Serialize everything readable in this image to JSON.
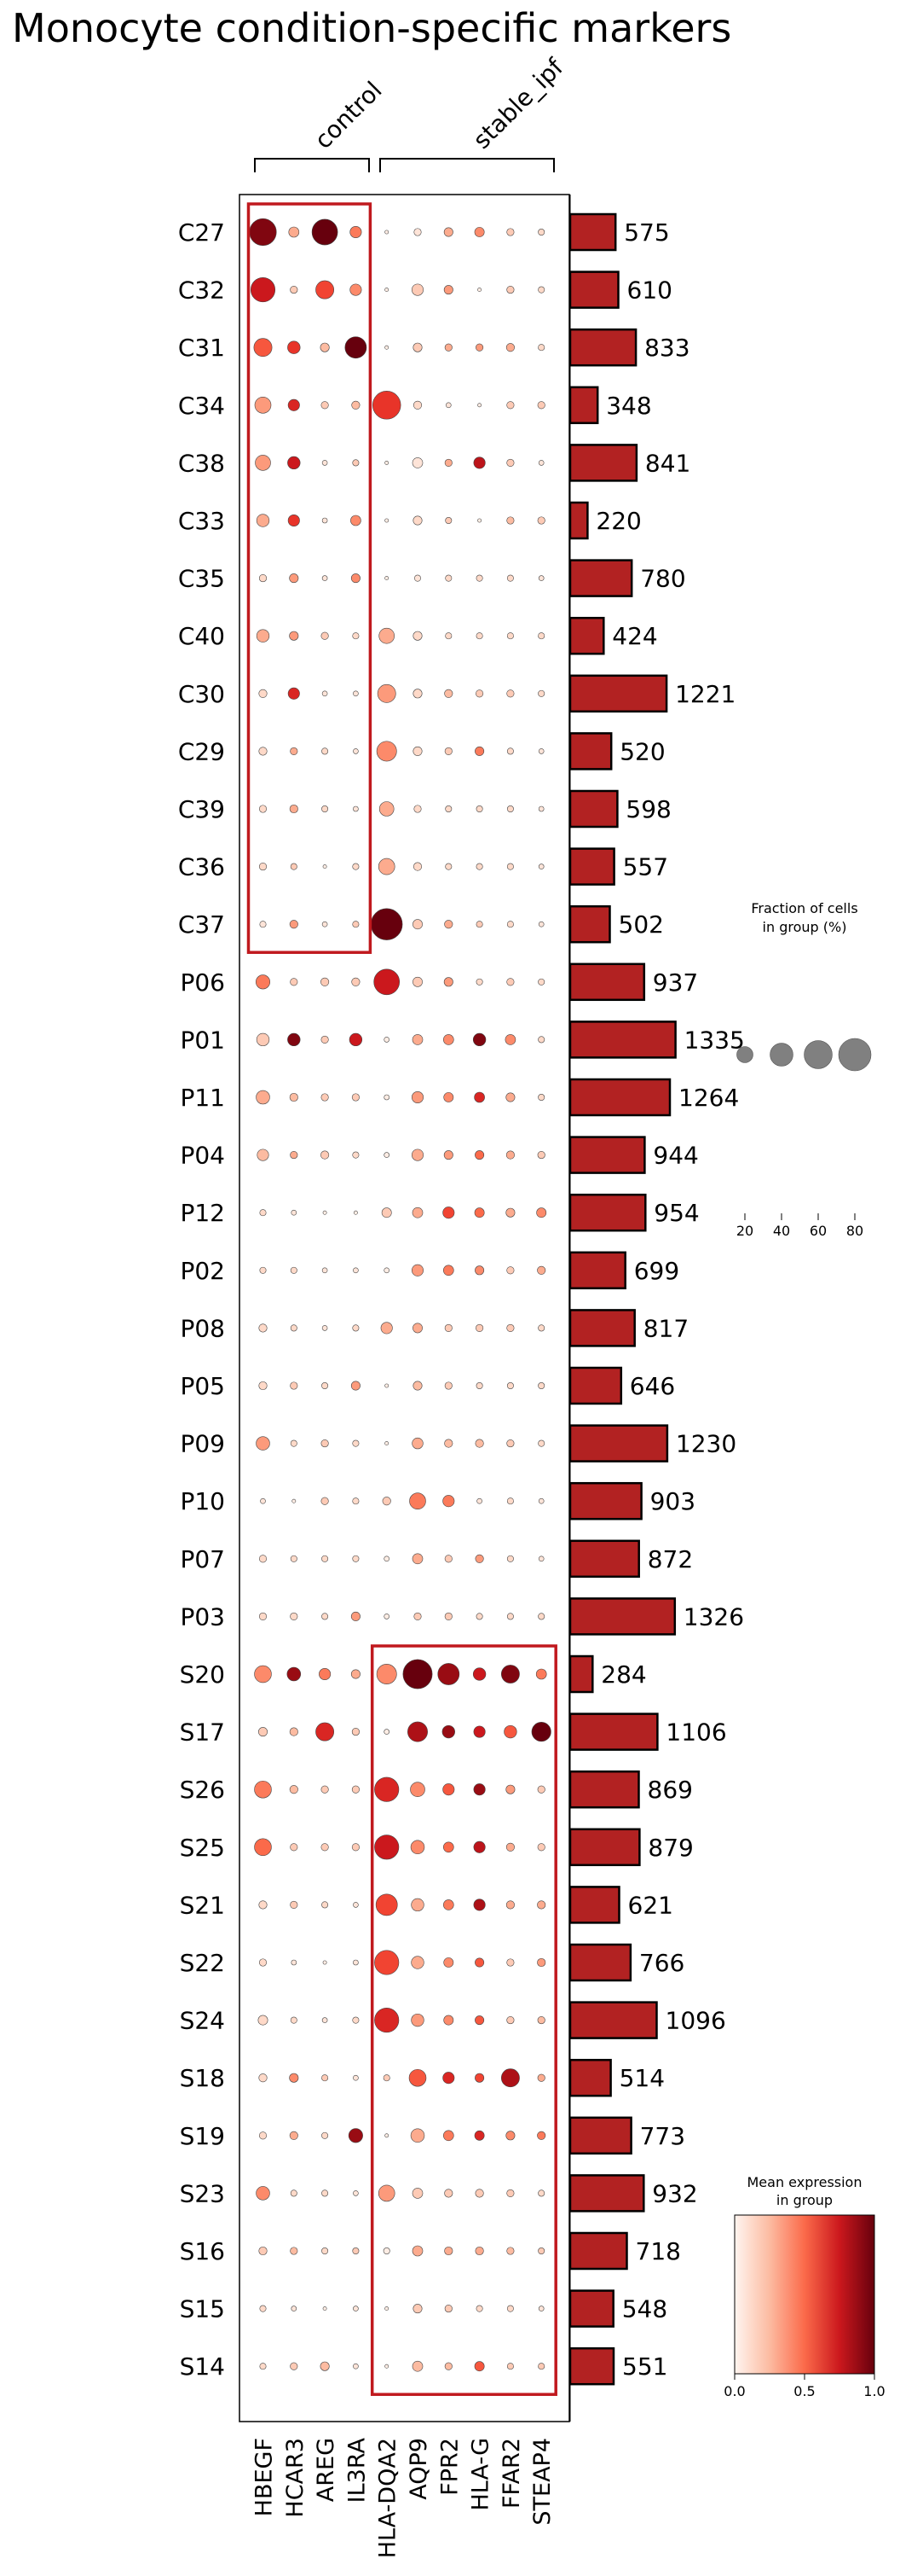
{
  "chart_data": {
    "type": "dotplot",
    "title": "Monocyte condition-specific markers",
    "groups": [
      {
        "label": "control",
        "genes": [
          "HBEGF",
          "HCAR3",
          "AREG",
          "IL3RA"
        ]
      },
      {
        "label": "stable_ipf",
        "genes": [
          "HLA-DQA2",
          "AQP9",
          "FPR2",
          "HLA-G",
          "FFAR2",
          "STEAP4"
        ]
      }
    ],
    "genes": [
      "HBEGF",
      "HCAR3",
      "AREG",
      "IL3RA",
      "HLA-DQA2",
      "AQP9",
      "FPR2",
      "HLA-G",
      "FFAR2",
      "STEAP4"
    ],
    "rows": [
      "C27",
      "C32",
      "C31",
      "C34",
      "C38",
      "C33",
      "C35",
      "C40",
      "C30",
      "C29",
      "C39",
      "C36",
      "C37",
      "P06",
      "P01",
      "P11",
      "P04",
      "P12",
      "P02",
      "P08",
      "P05",
      "P09",
      "P10",
      "P07",
      "P03",
      "S20",
      "S17",
      "S26",
      "S25",
      "S21",
      "S22",
      "S24",
      "S18",
      "S19",
      "S23",
      "S16",
      "S15",
      "S14"
    ],
    "cell_counts": [
      575,
      610,
      833,
      348,
      841,
      220,
      780,
      424,
      1221,
      520,
      598,
      557,
      502,
      937,
      1335,
      1264,
      944,
      954,
      699,
      817,
      646,
      1230,
      903,
      872,
      1326,
      284,
      1106,
      869,
      879,
      621,
      766,
      1096,
      514,
      773,
      932,
      718,
      548,
      551
    ],
    "fraction": [
      [
        55,
        8,
        50,
        10,
        1,
        4,
        6,
        7,
        4,
        3
      ],
      [
        45,
        4,
        25,
        10,
        1,
        10,
        6,
        1,
        4,
        3
      ],
      [
        25,
        12,
        6,
        35,
        1,
        6,
        4,
        4,
        5,
        3
      ],
      [
        20,
        10,
        4,
        5,
        60,
        5,
        2,
        1,
        4,
        4
      ],
      [
        18,
        12,
        2,
        3,
        1,
        8,
        4,
        10,
        4,
        2
      ],
      [
        12,
        10,
        2,
        8,
        1,
        6,
        3,
        1,
        4,
        4
      ],
      [
        4,
        6,
        2,
        6,
        1,
        3,
        3,
        3,
        3,
        2
      ],
      [
        12,
        6,
        4,
        3,
        18,
        6,
        3,
        3,
        3,
        3
      ],
      [
        5,
        10,
        2,
        2,
        25,
        6,
        5,
        4,
        4,
        3
      ],
      [
        5,
        4,
        3,
        2,
        30,
        6,
        4,
        6,
        3,
        2
      ],
      [
        4,
        5,
        3,
        2,
        16,
        4,
        3,
        3,
        3,
        2
      ],
      [
        4,
        3,
        1,
        3,
        20,
        5,
        3,
        3,
        3,
        2
      ],
      [
        3,
        5,
        2,
        3,
        75,
        7,
        5,
        3,
        3,
        2
      ],
      [
        15,
        4,
        5,
        5,
        50,
        7,
        6,
        3,
        4,
        3
      ],
      [
        12,
        12,
        4,
        12,
        2,
        8,
        8,
        12,
        8,
        3
      ],
      [
        14,
        5,
        4,
        4,
        2,
        10,
        7,
        8,
        6,
        3
      ],
      [
        10,
        4,
        5,
        3,
        2,
        10,
        6,
        6,
        5,
        4
      ],
      [
        3,
        2,
        1,
        1,
        7,
        8,
        10,
        7,
        6,
        7
      ],
      [
        3,
        3,
        2,
        2,
        2,
        10,
        8,
        6,
        4,
        5
      ],
      [
        5,
        3,
        2,
        3,
        10,
        7,
        4,
        4,
        4,
        3
      ],
      [
        5,
        4,
        3,
        6,
        1,
        6,
        4,
        3,
        3,
        3
      ],
      [
        14,
        3,
        4,
        3,
        1,
        9,
        5,
        5,
        4,
        3
      ],
      [
        2,
        1,
        4,
        3,
        5,
        20,
        10,
        2,
        3,
        2
      ],
      [
        4,
        3,
        3,
        3,
        2,
        8,
        4,
        5,
        3,
        2
      ],
      [
        4,
        4,
        3,
        6,
        2,
        4,
        4,
        3,
        3,
        3
      ],
      [
        22,
        14,
        10,
        6,
        30,
        65,
        35,
        12,
        25,
        8
      ],
      [
        6,
        5,
        25,
        4,
        2,
        30,
        12,
        10,
        12,
        28
      ],
      [
        22,
        5,
        4,
        4,
        45,
        16,
        10,
        10,
        6,
        4
      ],
      [
        22,
        4,
        4,
        4,
        45,
        14,
        8,
        10,
        5,
        4
      ],
      [
        5,
        4,
        3,
        2,
        35,
        12,
        8,
        10,
        5,
        5
      ],
      [
        4,
        2,
        1,
        2,
        45,
        12,
        7,
        6,
        4,
        5
      ],
      [
        7,
        3,
        2,
        3,
        45,
        12,
        7,
        6,
        4,
        4
      ],
      [
        5,
        6,
        3,
        2,
        3,
        22,
        10,
        6,
        25,
        4
      ],
      [
        4,
        5,
        3,
        15,
        1,
        14,
        8,
        7,
        6,
        5
      ],
      [
        14,
        3,
        3,
        2,
        20,
        8,
        5,
        5,
        4,
        3
      ],
      [
        5,
        4,
        3,
        3,
        3,
        8,
        5,
        5,
        4,
        3
      ],
      [
        3,
        2,
        1,
        2,
        1,
        6,
        4,
        3,
        3,
        2
      ],
      [
        3,
        4,
        6,
        2,
        1,
        8,
        4,
        7,
        3,
        3
      ]
    ],
    "mean_expression": [
      [
        0.95,
        0.3,
        1.0,
        0.45,
        0.05,
        0.1,
        0.3,
        0.4,
        0.2,
        0.15
      ],
      [
        0.75,
        0.2,
        0.6,
        0.4,
        0.05,
        0.2,
        0.35,
        0.05,
        0.2,
        0.15
      ],
      [
        0.55,
        0.65,
        0.25,
        1.0,
        0.05,
        0.2,
        0.3,
        0.35,
        0.3,
        0.15
      ],
      [
        0.35,
        0.7,
        0.2,
        0.25,
        0.65,
        0.15,
        0.1,
        0.05,
        0.2,
        0.2
      ],
      [
        0.35,
        0.75,
        0.1,
        0.2,
        0.05,
        0.1,
        0.3,
        0.8,
        0.2,
        0.1
      ],
      [
        0.3,
        0.65,
        0.1,
        0.4,
        0.05,
        0.15,
        0.2,
        0.05,
        0.25,
        0.2
      ],
      [
        0.15,
        0.35,
        0.1,
        0.4,
        0.05,
        0.1,
        0.15,
        0.15,
        0.15,
        0.1
      ],
      [
        0.3,
        0.35,
        0.2,
        0.15,
        0.3,
        0.15,
        0.15,
        0.15,
        0.15,
        0.15
      ],
      [
        0.15,
        0.7,
        0.1,
        0.1,
        0.35,
        0.15,
        0.25,
        0.2,
        0.2,
        0.15
      ],
      [
        0.15,
        0.3,
        0.15,
        0.1,
        0.4,
        0.15,
        0.2,
        0.45,
        0.15,
        0.1
      ],
      [
        0.15,
        0.3,
        0.15,
        0.1,
        0.3,
        0.15,
        0.15,
        0.15,
        0.15,
        0.1
      ],
      [
        0.15,
        0.2,
        0.05,
        0.15,
        0.3,
        0.15,
        0.15,
        0.15,
        0.15,
        0.1
      ],
      [
        0.1,
        0.35,
        0.1,
        0.2,
        1.0,
        0.2,
        0.3,
        0.2,
        0.15,
        0.1
      ],
      [
        0.45,
        0.2,
        0.2,
        0.2,
        0.75,
        0.2,
        0.35,
        0.15,
        0.2,
        0.15
      ],
      [
        0.2,
        0.95,
        0.2,
        0.75,
        0.05,
        0.3,
        0.4,
        0.95,
        0.4,
        0.15
      ],
      [
        0.3,
        0.25,
        0.2,
        0.2,
        0.05,
        0.35,
        0.4,
        0.7,
        0.3,
        0.15
      ],
      [
        0.25,
        0.3,
        0.2,
        0.15,
        0.05,
        0.3,
        0.35,
        0.5,
        0.3,
        0.2
      ],
      [
        0.15,
        0.1,
        0.05,
        0.05,
        0.2,
        0.3,
        0.6,
        0.5,
        0.3,
        0.4
      ],
      [
        0.15,
        0.15,
        0.1,
        0.1,
        0.05,
        0.35,
        0.45,
        0.4,
        0.2,
        0.3
      ],
      [
        0.15,
        0.15,
        0.1,
        0.15,
        0.3,
        0.3,
        0.2,
        0.2,
        0.2,
        0.15
      ],
      [
        0.15,
        0.2,
        0.15,
        0.35,
        0.05,
        0.25,
        0.2,
        0.15,
        0.15,
        0.15
      ],
      [
        0.35,
        0.15,
        0.2,
        0.15,
        0.05,
        0.3,
        0.25,
        0.25,
        0.2,
        0.15
      ],
      [
        0.1,
        0.05,
        0.2,
        0.15,
        0.2,
        0.45,
        0.45,
        0.1,
        0.15,
        0.1
      ],
      [
        0.15,
        0.15,
        0.15,
        0.15,
        0.05,
        0.3,
        0.2,
        0.35,
        0.15,
        0.1
      ],
      [
        0.15,
        0.15,
        0.15,
        0.35,
        0.05,
        0.2,
        0.2,
        0.15,
        0.15,
        0.15
      ],
      [
        0.4,
        0.9,
        0.45,
        0.3,
        0.4,
        1.0,
        0.9,
        0.75,
        0.95,
        0.45
      ],
      [
        0.2,
        0.25,
        0.7,
        0.2,
        0.05,
        0.85,
        0.9,
        0.75,
        0.55,
        1.0
      ],
      [
        0.45,
        0.25,
        0.2,
        0.2,
        0.7,
        0.4,
        0.55,
        0.9,
        0.35,
        0.2
      ],
      [
        0.5,
        0.2,
        0.2,
        0.2,
        0.75,
        0.4,
        0.5,
        0.8,
        0.3,
        0.2
      ],
      [
        0.15,
        0.2,
        0.15,
        0.1,
        0.6,
        0.3,
        0.45,
        0.85,
        0.3,
        0.3
      ],
      [
        0.15,
        0.1,
        0.05,
        0.1,
        0.6,
        0.3,
        0.4,
        0.55,
        0.2,
        0.35
      ],
      [
        0.15,
        0.15,
        0.1,
        0.15,
        0.7,
        0.35,
        0.4,
        0.55,
        0.2,
        0.25
      ],
      [
        0.15,
        0.4,
        0.2,
        0.1,
        0.2,
        0.55,
        0.7,
        0.6,
        0.85,
        0.3
      ],
      [
        0.15,
        0.3,
        0.15,
        0.9,
        0.05,
        0.3,
        0.45,
        0.7,
        0.4,
        0.45
      ],
      [
        0.4,
        0.15,
        0.15,
        0.1,
        0.35,
        0.2,
        0.2,
        0.2,
        0.2,
        0.15
      ],
      [
        0.2,
        0.25,
        0.15,
        0.2,
        0.05,
        0.3,
        0.3,
        0.3,
        0.25,
        0.2
      ],
      [
        0.15,
        0.1,
        0.05,
        0.1,
        0.05,
        0.2,
        0.2,
        0.15,
        0.15,
        0.1
      ],
      [
        0.15,
        0.2,
        0.25,
        0.1,
        0.05,
        0.25,
        0.25,
        0.55,
        0.2,
        0.2
      ]
    ],
    "highlight_boxes": [
      {
        "genes": [
          "HBEGF",
          "IL3RA"
        ],
        "rows": [
          "C27",
          "C37"
        ]
      },
      {
        "genes": [
          "HLA-DQA2",
          "STEAP4"
        ],
        "rows": [
          "S20",
          "S14"
        ]
      }
    ],
    "size_legend": {
      "title_line1": "Fraction of cells",
      "title_line2": "in group (%)",
      "values": [
        20,
        40,
        60,
        80
      ],
      "ticks": [
        "20",
        "40",
        "60",
        "80"
      ]
    },
    "color_legend": {
      "title_line1": "Mean expression",
      "title_line2": "in group",
      "ticks": [
        "0.0",
        "0.5",
        "1.0"
      ],
      "range": [
        0,
        1
      ],
      "colormap": "Reds"
    },
    "bar_color": "#b22222",
    "box_color": "#c0191e",
    "dot_color_low": "#fff5f0",
    "dot_color_mid": "#ef3b2c",
    "dot_color_high": "#67000d",
    "size_legend_color": "#808080"
  }
}
